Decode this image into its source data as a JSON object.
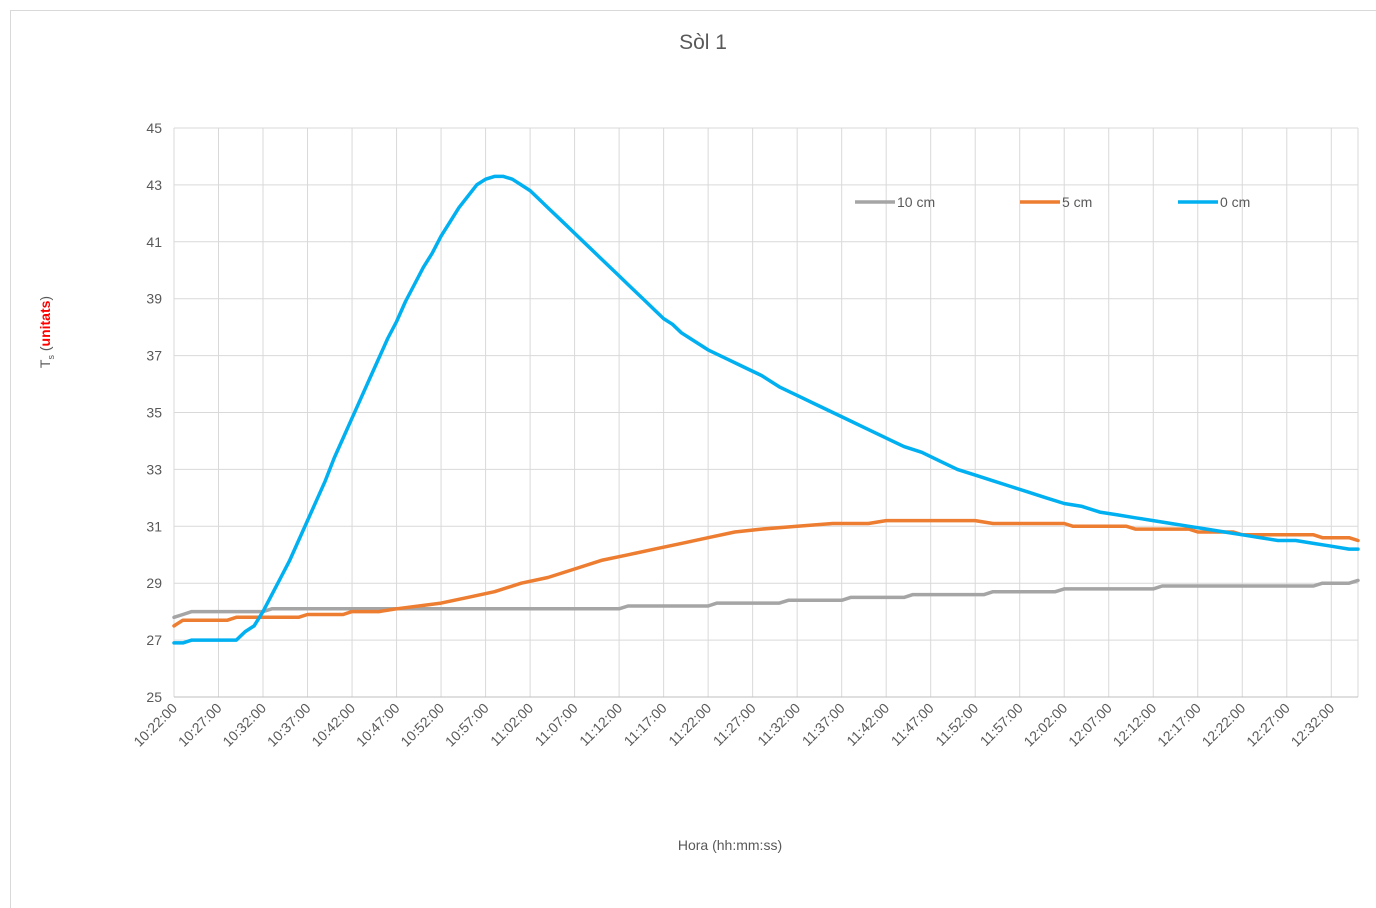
{
  "chart_data": {
    "type": "line",
    "title": "Sòl 1",
    "xlabel": "Hora (hh:mm:ss)",
    "ylabel": {
      "main": "T",
      "sub": "s",
      "unit": "unitats",
      "unit_color": "#ff0000"
    },
    "ylim": [
      25,
      45
    ],
    "yticks": [
      25,
      27,
      29,
      31,
      33,
      35,
      37,
      39,
      41,
      43,
      45
    ],
    "x_range": [
      "10:22:00",
      "12:35:00"
    ],
    "xticks": [
      "10:22:00",
      "10:27:00",
      "10:32:00",
      "10:37:00",
      "10:42:00",
      "10:47:00",
      "10:52:00",
      "10:57:00",
      "11:02:00",
      "11:07:00",
      "11:12:00",
      "11:17:00",
      "11:22:00",
      "11:27:00",
      "11:32:00",
      "11:37:00",
      "11:42:00",
      "11:47:00",
      "11:52:00",
      "11:57:00",
      "12:02:00",
      "12:07:00",
      "12:12:00",
      "12:17:00",
      "12:22:00",
      "12:27:00",
      "12:32:00"
    ],
    "grid": true,
    "legend": "top-right",
    "series": [
      {
        "name": "10 cm",
        "color": "#a5a5a5",
        "points": [
          [
            "10:22:00",
            27.8
          ],
          [
            "10:23:00",
            27.9
          ],
          [
            "10:24:00",
            28.0
          ],
          [
            "10:32:00",
            28.0
          ],
          [
            "10:33:00",
            28.1
          ],
          [
            "10:49:00",
            28.1
          ],
          [
            "10:50:00",
            28.1
          ],
          [
            "11:12:00",
            28.1
          ],
          [
            "11:13:00",
            28.2
          ],
          [
            "11:22:00",
            28.2
          ],
          [
            "11:23:00",
            28.3
          ],
          [
            "11:30:00",
            28.3
          ],
          [
            "11:31:00",
            28.4
          ],
          [
            "11:37:00",
            28.4
          ],
          [
            "11:38:00",
            28.5
          ],
          [
            "11:44:00",
            28.5
          ],
          [
            "11:45:00",
            28.6
          ],
          [
            "11:53:00",
            28.6
          ],
          [
            "11:54:00",
            28.7
          ],
          [
            "12:01:00",
            28.7
          ],
          [
            "12:02:00",
            28.8
          ],
          [
            "12:12:00",
            28.8
          ],
          [
            "12:13:00",
            28.9
          ],
          [
            "12:30:00",
            28.9
          ],
          [
            "12:31:00",
            29.0
          ],
          [
            "12:34:00",
            29.0
          ],
          [
            "12:35:00",
            29.1
          ]
        ]
      },
      {
        "name": "5 cm",
        "color": "#ed7d31",
        "points": [
          [
            "10:22:00",
            27.5
          ],
          [
            "10:23:00",
            27.7
          ],
          [
            "10:28:00",
            27.7
          ],
          [
            "10:29:00",
            27.8
          ],
          [
            "10:36:00",
            27.8
          ],
          [
            "10:37:00",
            27.9
          ],
          [
            "10:41:00",
            27.9
          ],
          [
            "10:42:00",
            28.0
          ],
          [
            "10:45:00",
            28.0
          ],
          [
            "10:47:00",
            28.1
          ],
          [
            "10:52:00",
            28.3
          ],
          [
            "10:55:00",
            28.5
          ],
          [
            "10:58:00",
            28.7
          ],
          [
            "11:01:00",
            29.0
          ],
          [
            "11:04:00",
            29.2
          ],
          [
            "11:07:00",
            29.5
          ],
          [
            "11:10:00",
            29.8
          ],
          [
            "11:13:00",
            30.0
          ],
          [
            "11:16:00",
            30.2
          ],
          [
            "11:19:00",
            30.4
          ],
          [
            "11:22:00",
            30.6
          ],
          [
            "11:25:00",
            30.8
          ],
          [
            "11:28:00",
            30.9
          ],
          [
            "11:32:00",
            31.0
          ],
          [
            "11:36:00",
            31.1
          ],
          [
            "11:40:00",
            31.1
          ],
          [
            "11:42:00",
            31.2
          ],
          [
            "11:52:00",
            31.2
          ],
          [
            "11:54:00",
            31.1
          ],
          [
            "12:02:00",
            31.1
          ],
          [
            "12:03:00",
            31.0
          ],
          [
            "12:09:00",
            31.0
          ],
          [
            "12:10:00",
            30.9
          ],
          [
            "12:16:00",
            30.9
          ],
          [
            "12:17:00",
            30.8
          ],
          [
            "12:21:00",
            30.8
          ],
          [
            "12:22:00",
            30.7
          ],
          [
            "12:30:00",
            30.7
          ],
          [
            "12:31:00",
            30.6
          ],
          [
            "12:34:00",
            30.6
          ],
          [
            "12:35:00",
            30.5
          ]
        ]
      },
      {
        "name": "0 cm",
        "color": "#00b0f0",
        "points": [
          [
            "10:22:00",
            26.9
          ],
          [
            "10:23:00",
            26.9
          ],
          [
            "10:24:00",
            27.0
          ],
          [
            "10:29:00",
            27.0
          ],
          [
            "10:30:00",
            27.3
          ],
          [
            "10:31:00",
            27.5
          ],
          [
            "10:32:00",
            28.0
          ],
          [
            "10:33:00",
            28.6
          ],
          [
            "10:34:00",
            29.2
          ],
          [
            "10:35:00",
            29.8
          ],
          [
            "10:36:00",
            30.5
          ],
          [
            "10:37:00",
            31.2
          ],
          [
            "10:38:00",
            31.9
          ],
          [
            "10:39:00",
            32.6
          ],
          [
            "10:40:00",
            33.4
          ],
          [
            "10:41:00",
            34.1
          ],
          [
            "10:42:00",
            34.8
          ],
          [
            "10:43:00",
            35.5
          ],
          [
            "10:44:00",
            36.2
          ],
          [
            "10:45:00",
            36.9
          ],
          [
            "10:46:00",
            37.6
          ],
          [
            "10:47:00",
            38.2
          ],
          [
            "10:48:00",
            38.9
          ],
          [
            "10:49:00",
            39.5
          ],
          [
            "10:50:00",
            40.1
          ],
          [
            "10:51:00",
            40.6
          ],
          [
            "10:52:00",
            41.2
          ],
          [
            "10:53:00",
            41.7
          ],
          [
            "10:54:00",
            42.2
          ],
          [
            "10:55:00",
            42.6
          ],
          [
            "10:56:00",
            43.0
          ],
          [
            "10:57:00",
            43.2
          ],
          [
            "10:58:00",
            43.3
          ],
          [
            "10:59:00",
            43.3
          ],
          [
            "11:00:00",
            43.2
          ],
          [
            "11:01:00",
            43.0
          ],
          [
            "11:02:00",
            42.8
          ],
          [
            "11:03:00",
            42.5
          ],
          [
            "11:04:00",
            42.2
          ],
          [
            "11:05:00",
            41.9
          ],
          [
            "11:06:00",
            41.6
          ],
          [
            "11:07:00",
            41.3
          ],
          [
            "11:08:00",
            41.0
          ],
          [
            "11:09:00",
            40.7
          ],
          [
            "11:10:00",
            40.4
          ],
          [
            "11:11:00",
            40.1
          ],
          [
            "11:12:00",
            39.8
          ],
          [
            "11:13:00",
            39.5
          ],
          [
            "11:14:00",
            39.2
          ],
          [
            "11:15:00",
            38.9
          ],
          [
            "11:16:00",
            38.6
          ],
          [
            "11:17:00",
            38.3
          ],
          [
            "11:18:00",
            38.1
          ],
          [
            "11:19:00",
            37.8
          ],
          [
            "11:20:00",
            37.6
          ],
          [
            "11:22:00",
            37.2
          ],
          [
            "11:24:00",
            36.9
          ],
          [
            "11:26:00",
            36.6
          ],
          [
            "11:28:00",
            36.3
          ],
          [
            "11:30:00",
            35.9
          ],
          [
            "11:32:00",
            35.6
          ],
          [
            "11:34:00",
            35.3
          ],
          [
            "11:36:00",
            35.0
          ],
          [
            "11:38:00",
            34.7
          ],
          [
            "11:40:00",
            34.4
          ],
          [
            "11:42:00",
            34.1
          ],
          [
            "11:44:00",
            33.8
          ],
          [
            "11:46:00",
            33.6
          ],
          [
            "11:48:00",
            33.3
          ],
          [
            "11:50:00",
            33.0
          ],
          [
            "11:52:00",
            32.8
          ],
          [
            "11:54:00",
            32.6
          ],
          [
            "11:56:00",
            32.4
          ],
          [
            "11:58:00",
            32.2
          ],
          [
            "12:00:00",
            32.0
          ],
          [
            "12:02:00",
            31.8
          ],
          [
            "12:04:00",
            31.7
          ],
          [
            "12:06:00",
            31.5
          ],
          [
            "12:08:00",
            31.4
          ],
          [
            "12:10:00",
            31.3
          ],
          [
            "12:12:00",
            31.2
          ],
          [
            "12:14:00",
            31.1
          ],
          [
            "12:16:00",
            31.0
          ],
          [
            "12:18:00",
            30.9
          ],
          [
            "12:20:00",
            30.8
          ],
          [
            "12:22:00",
            30.7
          ],
          [
            "12:24:00",
            30.6
          ],
          [
            "12:26:00",
            30.5
          ],
          [
            "12:28:00",
            30.5
          ],
          [
            "12:30:00",
            30.4
          ],
          [
            "12:32:00",
            30.3
          ],
          [
            "12:34:00",
            30.2
          ],
          [
            "12:35:00",
            30.2
          ]
        ]
      }
    ]
  }
}
